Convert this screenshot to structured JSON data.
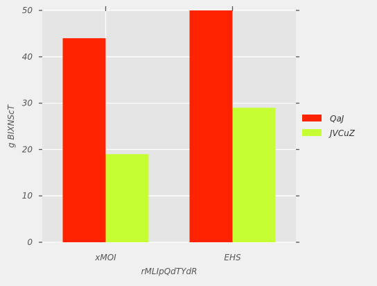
{
  "chart_data": {
    "type": "bar",
    "title": "",
    "xlabel": "rMLIpQdTYdR",
    "ylabel": "g  BIXNScT",
    "categories": [
      "xMOI",
      "EHS"
    ],
    "series": [
      {
        "name": "QaJ",
        "values": [
          44,
          50
        ],
        "color": "#ff2200"
      },
      {
        "name": "JVCuZ",
        "values": [
          19,
          29
        ],
        "color": "#c5ff33"
      }
    ],
    "ylim": [
      0,
      50
    ],
    "yticks": [
      0,
      10,
      20,
      30,
      40,
      50
    ],
    "grid": true,
    "legend_position": "right"
  }
}
